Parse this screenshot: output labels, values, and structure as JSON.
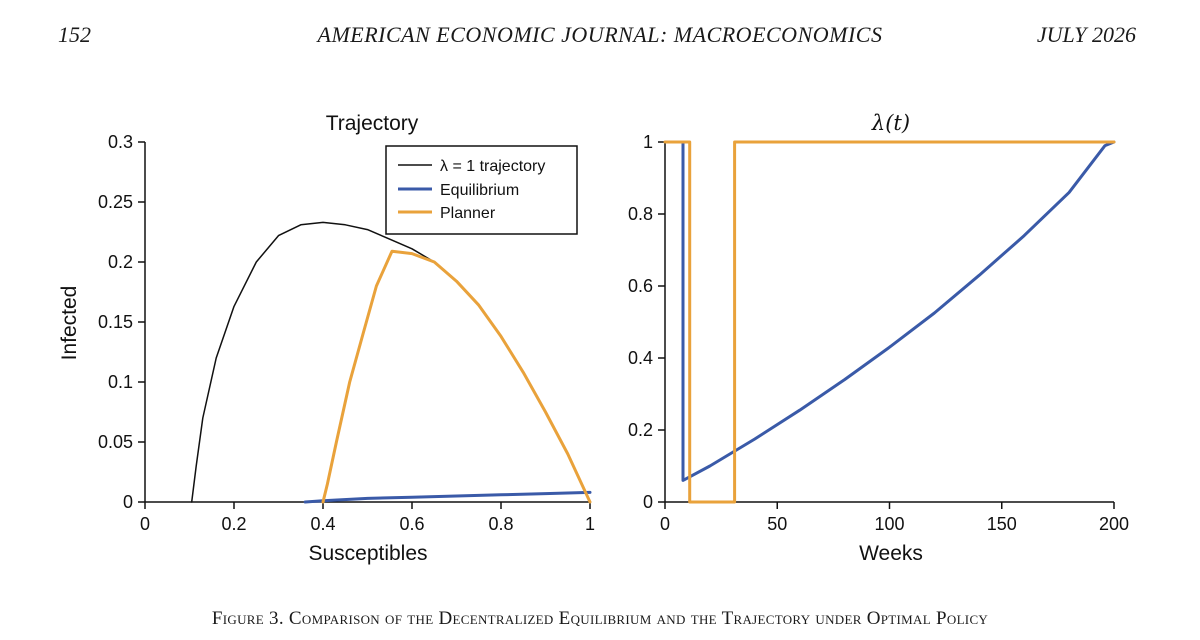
{
  "header": {
    "page_number": "152",
    "journal": "AMERICAN ECONOMIC JOURNAL: MACROECONOMICS",
    "date": "JULY 2026"
  },
  "caption": "Figure 3. Comparison of the Decentralized Equilibrium and the Trajectory under Optimal Policy",
  "colors": {
    "equilibrium": "#3a5aa8",
    "planner": "#e9a23b",
    "lambda1": "#111111"
  },
  "chart_data": [
    {
      "type": "line",
      "title": "Trajectory",
      "xlabel": "Susceptibles",
      "ylabel": "Infected",
      "xlim": [
        0,
        1
      ],
      "ylim": [
        0,
        0.3
      ],
      "xticks": [
        0,
        0.2,
        0.4,
        0.6,
        0.8,
        1
      ],
      "xtick_labels": [
        "0",
        "0.2",
        "0.4",
        "0.6",
        "0.8",
        "1"
      ],
      "yticks": [
        0,
        0.05,
        0.1,
        0.15,
        0.2,
        0.25,
        0.3
      ],
      "ytick_labels": [
        "0",
        "0.05",
        "0.1",
        "0.15",
        "0.2",
        "0.25",
        "0.3"
      ],
      "legend_position": "top-right",
      "series": [
        {
          "name": "λ = 1 trajectory",
          "color": "#111111",
          "points": [
            [
              1.0,
              0.0
            ],
            [
              0.95,
              0.04
            ],
            [
              0.9,
              0.075
            ],
            [
              0.85,
              0.108
            ],
            [
              0.8,
              0.138
            ],
            [
              0.75,
              0.164
            ],
            [
              0.7,
              0.184
            ],
            [
              0.65,
              0.2
            ],
            [
              0.6,
              0.211
            ],
            [
              0.55,
              0.219
            ],
            [
              0.5,
              0.227
            ],
            [
              0.45,
              0.231
            ],
            [
              0.4,
              0.233
            ],
            [
              0.35,
              0.231
            ],
            [
              0.3,
              0.222
            ],
            [
              0.25,
              0.2
            ],
            [
              0.2,
              0.163
            ],
            [
              0.16,
              0.12
            ],
            [
              0.13,
              0.07
            ],
            [
              0.115,
              0.03
            ],
            [
              0.105,
              0.0
            ]
          ]
        },
        {
          "name": "Equilibrium",
          "color": "#3a5aa8",
          "points": [
            [
              1.0,
              0.008
            ],
            [
              0.9,
              0.007
            ],
            [
              0.8,
              0.006
            ],
            [
              0.7,
              0.005
            ],
            [
              0.6,
              0.004
            ],
            [
              0.5,
              0.003
            ],
            [
              0.4,
              0.001
            ],
            [
              0.36,
              0.0
            ]
          ]
        },
        {
          "name": "Planner",
          "color": "#e9a23b",
          "points": [
            [
              1.0,
              0.0
            ],
            [
              0.95,
              0.04
            ],
            [
              0.9,
              0.075
            ],
            [
              0.85,
              0.108
            ],
            [
              0.8,
              0.138
            ],
            [
              0.75,
              0.164
            ],
            [
              0.7,
              0.184
            ],
            [
              0.65,
              0.2
            ],
            [
              0.6,
              0.207
            ],
            [
              0.555,
              0.209
            ],
            [
              0.52,
              0.18
            ],
            [
              0.49,
              0.14
            ],
            [
              0.46,
              0.1
            ],
            [
              0.43,
              0.05
            ],
            [
              0.41,
              0.015
            ],
            [
              0.4,
              0.0
            ]
          ]
        }
      ]
    },
    {
      "type": "line",
      "title": "λ(t)",
      "xlabel": "Weeks",
      "ylabel": "",
      "xlim": [
        0,
        200
      ],
      "ylim": [
        0,
        1
      ],
      "xticks": [
        0,
        50,
        100,
        150,
        200
      ],
      "xtick_labels": [
        "0",
        "50",
        "100",
        "150",
        "200"
      ],
      "yticks": [
        0,
        0.2,
        0.4,
        0.6,
        0.8,
        1
      ],
      "ytick_labels": [
        "0",
        "0.2",
        "0.4",
        "0.6",
        "0.8",
        "1"
      ],
      "series": [
        {
          "name": "Equilibrium",
          "color": "#3a5aa8",
          "points": [
            [
              8,
              1.0
            ],
            [
              8,
              0.06
            ],
            [
              20,
              0.1
            ],
            [
              40,
              0.175
            ],
            [
              60,
              0.255
            ],
            [
              80,
              0.34
            ],
            [
              100,
              0.43
            ],
            [
              120,
              0.525
            ],
            [
              140,
              0.63
            ],
            [
              160,
              0.74
            ],
            [
              180,
              0.86
            ],
            [
              196,
              0.99
            ],
            [
              200,
              1.0
            ]
          ]
        },
        {
          "name": "Planner",
          "color": "#e9a23b",
          "points": [
            [
              0,
              1.0
            ],
            [
              11,
              1.0
            ],
            [
              11,
              0.0
            ],
            [
              31,
              0.0
            ],
            [
              31,
              1.0
            ],
            [
              200,
              1.0
            ]
          ]
        }
      ]
    }
  ]
}
